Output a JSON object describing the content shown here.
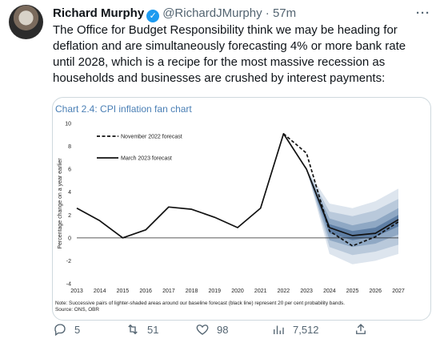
{
  "author": {
    "name": "Richard Murphy",
    "handle": "@RichardJMurphy",
    "separator": "·",
    "time": "57m"
  },
  "more_label": "···",
  "tweet_text": "The Office for Budget Responsibility think we may be heading for deflation and are simultaneously forecasting  4% or more bank rate until 2028, which is a recipe for the most massive recession as households and businesses are crushed by interest payments:",
  "chart_data": {
    "type": "line",
    "title": "Chart 2.4: CPI inflation fan chart",
    "ylabel": "Percentage change on a year earlier",
    "xlabel": "",
    "x": [
      "2013",
      "2014",
      "2015",
      "2016",
      "2017",
      "2018",
      "2019",
      "2020",
      "2021",
      "2022",
      "2023",
      "2024",
      "2025",
      "2026",
      "2027"
    ],
    "ylim": [
      -4,
      10
    ],
    "yticks": [
      -4,
      -2,
      0,
      2,
      4,
      6,
      8,
      10
    ],
    "legend": [
      "November 2022 forecast",
      "March 2023 forecast"
    ],
    "series": [
      {
        "name": "March 2023 forecast",
        "style": "solid",
        "x": [
          2013,
          2014,
          2015,
          2016,
          2017,
          2018,
          2019,
          2020,
          2021,
          2022,
          2023,
          2024,
          2025,
          2026,
          2027
        ],
        "values": [
          2.6,
          1.5,
          0.0,
          0.7,
          2.7,
          2.5,
          1.8,
          0.9,
          2.6,
          9.1,
          6.0,
          0.9,
          0.2,
          0.4,
          1.6
        ]
      },
      {
        "name": "November 2022 forecast",
        "style": "dashed",
        "x": [
          2022,
          2023,
          2024,
          2025,
          2026,
          2027
        ],
        "values": [
          9.1,
          7.4,
          0.6,
          -0.7,
          0.1,
          1.4
        ]
      }
    ],
    "fan_bands": [
      {
        "x": [
          2023,
          2024,
          2025,
          2026,
          2027
        ],
        "lower": [
          6.0,
          -1.4,
          -2.3,
          -2.0,
          -1.4
        ],
        "upper": [
          6.0,
          3.0,
          2.6,
          3.2,
          4.3
        ],
        "color": "#dde5ee"
      },
      {
        "x": [
          2023,
          2024,
          2025,
          2026,
          2027
        ],
        "lower": [
          6.0,
          -0.8,
          -1.5,
          -1.2,
          -0.6
        ],
        "upper": [
          6.0,
          2.3,
          1.9,
          2.4,
          3.4
        ],
        "color": "#b9c9db"
      },
      {
        "x": [
          2023,
          2024,
          2025,
          2026,
          2027
        ],
        "lower": [
          6.0,
          -0.2,
          -0.8,
          -0.5,
          0.3
        ],
        "upper": [
          6.0,
          1.7,
          1.1,
          1.5,
          2.6
        ],
        "color": "#8fa8c4"
      },
      {
        "x": [
          2023,
          2024,
          2025,
          2026,
          2027
        ],
        "lower": [
          6.0,
          0.4,
          -0.2,
          0.1,
          1.0
        ],
        "upper": [
          6.0,
          1.2,
          0.6,
          0.9,
          2.0
        ],
        "color": "#5e7ea4"
      }
    ]
  },
  "chart_note": "Note: Successive pairs of lighter-shaded areas around our baseline forecast (black line) represent 20 per cent probability bands.",
  "chart_source": "Source: ONS, OBR",
  "actions": {
    "replies": "5",
    "retweets": "51",
    "likes": "98",
    "views": "7,512"
  }
}
